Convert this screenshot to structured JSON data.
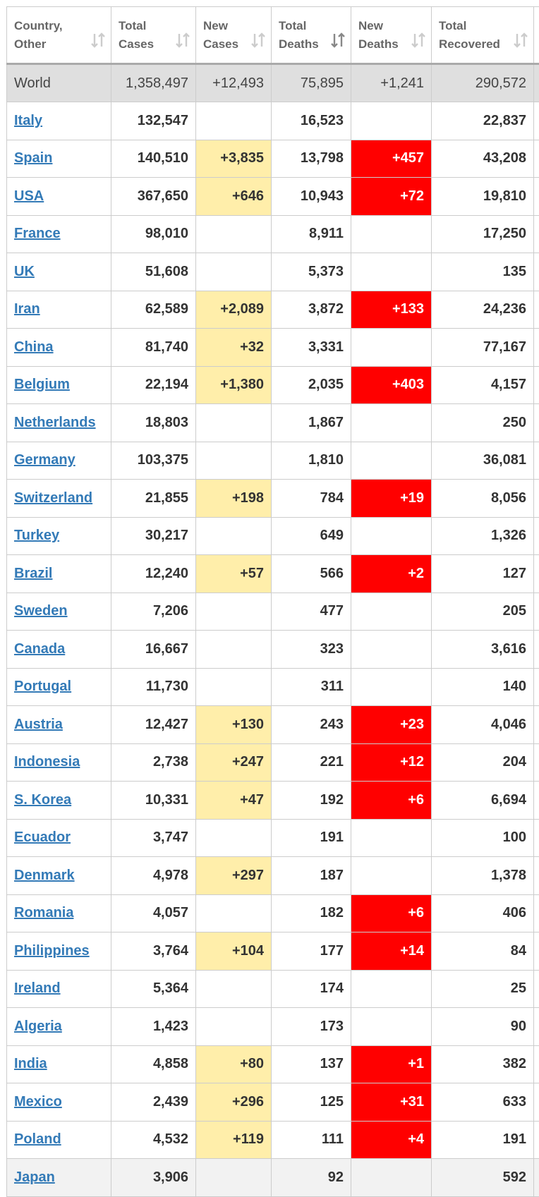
{
  "table": {
    "headers": [
      "Country, Other",
      "Total Cases",
      "New Cases",
      "Total Deaths",
      "New Deaths",
      "Total Recovered"
    ],
    "world": [
      "World",
      "1,358,497",
      "+12,493",
      "75,895",
      "+1,241",
      "290,572"
    ],
    "rows": [
      [
        "Italy",
        "132,547",
        null,
        "16,523",
        null,
        "22,837"
      ],
      [
        "Spain",
        "140,510",
        "+3,835",
        "13,798",
        "+457",
        "43,208"
      ],
      [
        "USA",
        "367,650",
        "+646",
        "10,943",
        "+72",
        "19,810"
      ],
      [
        "France",
        "98,010",
        null,
        "8,911",
        null,
        "17,250"
      ],
      [
        "UK",
        "51,608",
        null,
        "5,373",
        null,
        "135"
      ],
      [
        "Iran",
        "62,589",
        "+2,089",
        "3,872",
        "+133",
        "24,236"
      ],
      [
        "China",
        "81,740",
        "+32",
        "3,331",
        null,
        "77,167"
      ],
      [
        "Belgium",
        "22,194",
        "+1,380",
        "2,035",
        "+403",
        "4,157"
      ],
      [
        "Netherlands",
        "18,803",
        null,
        "1,867",
        null,
        "250"
      ],
      [
        "Germany",
        "103,375",
        null,
        "1,810",
        null,
        "36,081"
      ],
      [
        "Switzerland",
        "21,855",
        "+198",
        "784",
        "+19",
        "8,056"
      ],
      [
        "Turkey",
        "30,217",
        null,
        "649",
        null,
        "1,326"
      ],
      [
        "Brazil",
        "12,240",
        "+57",
        "566",
        "+2",
        "127"
      ],
      [
        "Sweden",
        "7,206",
        null,
        "477",
        null,
        "205"
      ],
      [
        "Canada",
        "16,667",
        null,
        "323",
        null,
        "3,616"
      ],
      [
        "Portugal",
        "11,730",
        null,
        "311",
        null,
        "140"
      ],
      [
        "Austria",
        "12,427",
        "+130",
        "243",
        "+23",
        "4,046"
      ],
      [
        "Indonesia",
        "2,738",
        "+247",
        "221",
        "+12",
        "204"
      ],
      [
        "S. Korea",
        "10,331",
        "+47",
        "192",
        "+6",
        "6,694"
      ],
      [
        "Ecuador",
        "3,747",
        null,
        "191",
        null,
        "100"
      ],
      [
        "Denmark",
        "4,978",
        "+297",
        "187",
        null,
        "1,378"
      ],
      [
        "Romania",
        "4,057",
        null,
        "182",
        "+6",
        "406"
      ],
      [
        "Philippines",
        "3,764",
        "+104",
        "177",
        "+14",
        "84"
      ],
      [
        "Ireland",
        "5,364",
        null,
        "174",
        null,
        "25"
      ],
      [
        "Algeria",
        "1,423",
        null,
        "173",
        null,
        "90"
      ],
      [
        "India",
        "4,858",
        "+80",
        "137",
        "+1",
        "382"
      ],
      [
        "Mexico",
        "2,439",
        "+296",
        "125",
        "+31",
        "633"
      ],
      [
        "Poland",
        "4,532",
        "+119",
        "111",
        "+4",
        "191"
      ],
      [
        "Japan",
        "3,906",
        null,
        "92",
        null,
        "592"
      ]
    ]
  }
}
